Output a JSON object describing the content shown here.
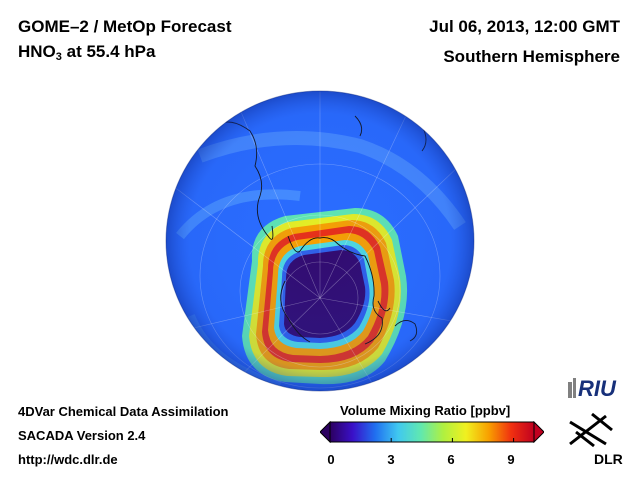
{
  "header": {
    "title_line1": "GOME–2 / MetOp Forecast",
    "title_species": "HNO",
    "title_subscript": "3",
    "title_level": " at 55.4 hPa",
    "datetime": "Jul 06, 2013, 12:00 GMT",
    "region": "Southern Hemisphere"
  },
  "footer": {
    "method": "4DVar Chemical Data Assimilation",
    "version": "SACADA Version 2.4",
    "url": "http://wdc.dlr.de"
  },
  "colorbar": {
    "title": "Volume Mixing Ratio [ppbv]",
    "ticks": [
      "0",
      "3",
      "6",
      "9"
    ],
    "min": 0,
    "max": 10,
    "colors": [
      "#2c0060",
      "#3a10c8",
      "#2070f0",
      "#40c8f0",
      "#60e8b0",
      "#b0f040",
      "#f0f020",
      "#f8a000",
      "#f03010",
      "#c00020"
    ]
  },
  "logos": {
    "riu_text": "RIU",
    "dlr_text": "DLR"
  },
  "map": {
    "projection": "orthographic, south pole centred",
    "background_color": "#2a6cff",
    "polar_vortex_color": "#320a6e",
    "band_colors": [
      "#60e8b0",
      "#f0f020",
      "#f8a000",
      "#e83018",
      "#f8a000",
      "#f0f020",
      "#60e8b0"
    ]
  }
}
